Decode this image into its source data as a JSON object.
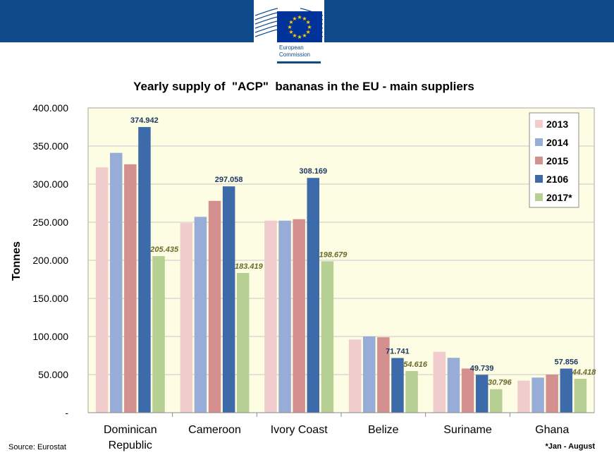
{
  "header": {
    "brand_line1": "European",
    "brand_line2": "Commission",
    "band_color": "#0e4a8a",
    "flag_color": "#003399",
    "star_color": "#ffcc00"
  },
  "chart_data": {
    "type": "bar",
    "title": "Yearly supply of  \"ACP\"  bananas in the EU - main suppliers",
    "ylabel": "Tonnes",
    "xlabel": "",
    "ylim": [
      0,
      400000
    ],
    "yticks": [
      0,
      50000,
      100000,
      150000,
      200000,
      250000,
      300000,
      350000,
      400000
    ],
    "ytick_labels": [
      "-",
      "50.000",
      "100.000",
      "150.000",
      "200.000",
      "250.000",
      "300.000",
      "350.000",
      "400.000"
    ],
    "categories": [
      [
        "Dominican",
        "Republic"
      ],
      [
        "Cameroon"
      ],
      [
        "Ivory Coast"
      ],
      [
        "Belize"
      ],
      [
        "Suriname"
      ],
      [
        "Ghana"
      ]
    ],
    "series": [
      {
        "name": "2013",
        "color": "#f0cccc",
        "values": [
          322000,
          249000,
          252000,
          96000,
          80000,
          42000
        ]
      },
      {
        "name": "2014",
        "color": "#97acd6",
        "values": [
          341000,
          257000,
          252000,
          100000,
          72000,
          46000
        ]
      },
      {
        "name": "2015",
        "color": "#d4908e",
        "values": [
          326000,
          278000,
          254000,
          99000,
          58000,
          50000
        ]
      },
      {
        "name": "2106",
        "color": "#3d6aa9",
        "values": [
          374942,
          297058,
          308169,
          71741,
          49739,
          57856
        ],
        "labels": [
          "374.942",
          "297.058",
          "308.169",
          "71.741",
          "49.739",
          "57.856"
        ],
        "label_color": "#1f3864"
      },
      {
        "name": "2017*",
        "color": "#b6d093",
        "values": [
          205435,
          183419,
          198679,
          54616,
          30796,
          44418
        ],
        "labels": [
          "205.435",
          "183.419",
          "198.679",
          "54.616",
          "30.796",
          "44.418"
        ],
        "label_color": "#6b6a2a"
      }
    ],
    "plot_background": "#fdfde3",
    "grid": true,
    "legend_position": "top-right"
  },
  "footer": {
    "source": "Source: Eurostat",
    "note": "*Jan - August"
  }
}
